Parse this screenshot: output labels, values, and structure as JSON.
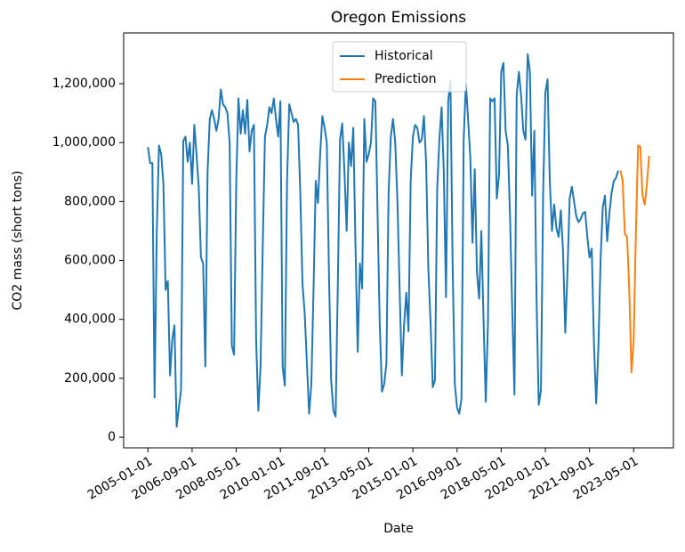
{
  "chart_data": {
    "type": "line",
    "title": "Oregon Emissions",
    "x_label": "Date",
    "y_label": "CO2 mass (short tons)",
    "legend": "upper center",
    "grid": false,
    "xlim": [
      "2004-02-01",
      "2024-11-01"
    ],
    "xticks": [
      "2005-01-01",
      "2006-09-01",
      "2008-05-01",
      "2010-01-01",
      "2011-09-01",
      "2013-05-01",
      "2015-01-01",
      "2016-09-01",
      "2018-05-01",
      "2020-01-01",
      "2021-09-01",
      "2023-05-01"
    ],
    "ylim": [
      -36000,
      1372000
    ],
    "yticks": [
      0,
      {
        "value": 200000,
        "label": "200,000"
      },
      {
        "value": 400000,
        "label": "400,000"
      },
      {
        "value": 600000,
        "label": "600,000"
      },
      {
        "value": 800000,
        "label": "800,000"
      },
      {
        "value": 1000000,
        "label": "1,000,000"
      },
      {
        "value": 1200000,
        "label": "1,200,000"
      }
    ],
    "series": [
      {
        "name": "Historical",
        "color": "#1f77b4",
        "x": [
          "2005-01-01",
          "2005-02-01",
          "2005-03-01",
          "2005-04-01",
          "2005-05-01",
          "2005-06-01",
          "2005-07-01",
          "2005-08-01",
          "2005-09-01",
          "2005-10-01",
          "2005-11-01",
          "2005-12-01",
          "2006-01-01",
          "2006-02-01",
          "2006-03-01",
          "2006-04-01",
          "2006-05-01",
          "2006-06-01",
          "2006-07-01",
          "2006-08-01",
          "2006-09-01",
          "2006-10-01",
          "2006-11-01",
          "2006-12-01",
          "2007-01-01",
          "2007-02-01",
          "2007-03-01",
          "2007-04-01",
          "2007-05-01",
          "2007-06-01",
          "2007-07-01",
          "2007-08-01",
          "2007-09-01",
          "2007-10-01",
          "2007-11-01",
          "2007-12-01",
          "2008-01-01",
          "2008-02-01",
          "2008-03-01",
          "2008-04-01",
          "2008-05-01",
          "2008-06-01",
          "2008-07-01",
          "2008-08-01",
          "2008-09-01",
          "2008-10-01",
          "2008-11-01",
          "2008-12-01",
          "2009-01-01",
          "2009-02-01",
          "2009-03-01",
          "2009-04-01",
          "2009-05-01",
          "2009-06-01",
          "2009-07-01",
          "2009-08-01",
          "2009-09-01",
          "2009-10-01",
          "2009-11-01",
          "2009-12-01",
          "2010-01-01",
          "2010-02-01",
          "2010-03-01",
          "2010-04-01",
          "2010-05-01",
          "2010-06-01",
          "2010-07-01",
          "2010-08-01",
          "2010-09-01",
          "2010-10-01",
          "2010-11-01",
          "2010-12-01",
          "2011-01-01",
          "2011-02-01",
          "2011-03-01",
          "2011-04-01",
          "2011-05-01",
          "2011-06-01",
          "2011-07-01",
          "2011-08-01",
          "2011-09-01",
          "2011-10-01",
          "2011-11-01",
          "2011-12-01",
          "2012-01-01",
          "2012-02-01",
          "2012-03-01",
          "2012-04-01",
          "2012-05-01",
          "2012-06-01",
          "2012-07-01",
          "2012-08-01",
          "2012-09-01",
          "2012-10-01",
          "2012-11-01",
          "2012-12-01",
          "2013-01-01",
          "2013-02-01",
          "2013-03-01",
          "2013-04-01",
          "2013-05-01",
          "2013-06-01",
          "2013-07-01",
          "2013-08-01",
          "2013-09-01",
          "2013-10-01",
          "2013-11-01",
          "2013-12-01",
          "2014-01-01",
          "2014-02-01",
          "2014-03-01",
          "2014-04-01",
          "2014-05-01",
          "2014-06-01",
          "2014-07-01",
          "2014-08-01",
          "2014-09-01",
          "2014-10-01",
          "2014-11-01",
          "2014-12-01",
          "2015-01-01",
          "2015-02-01",
          "2015-03-01",
          "2015-04-01",
          "2015-05-01",
          "2015-06-01",
          "2015-07-01",
          "2015-08-01",
          "2015-09-01",
          "2015-10-01",
          "2015-11-01",
          "2015-12-01",
          "2016-01-01",
          "2016-02-01",
          "2016-03-01",
          "2016-04-01",
          "2016-05-01",
          "2016-06-01",
          "2016-07-01",
          "2016-08-01",
          "2016-09-01",
          "2016-10-01",
          "2016-11-01",
          "2016-12-01",
          "2017-01-01",
          "2017-02-01",
          "2017-03-01",
          "2017-04-01",
          "2017-05-01",
          "2017-06-01",
          "2017-07-01",
          "2017-08-01",
          "2017-09-01",
          "2017-10-01",
          "2017-11-01",
          "2017-12-01",
          "2018-01-01",
          "2018-02-01",
          "2018-03-01",
          "2018-04-01",
          "2018-05-01",
          "2018-06-01",
          "2018-07-01",
          "2018-08-01",
          "2018-09-01",
          "2018-10-01",
          "2018-11-01",
          "2018-12-01",
          "2019-01-01",
          "2019-02-01",
          "2019-03-01",
          "2019-04-01",
          "2019-05-01",
          "2019-06-01",
          "2019-07-01",
          "2019-08-01",
          "2019-09-01",
          "2019-10-01",
          "2019-11-01",
          "2019-12-01",
          "2020-01-01",
          "2020-02-01",
          "2020-03-01",
          "2020-04-01",
          "2020-05-01",
          "2020-06-01",
          "2020-07-01",
          "2020-08-01",
          "2020-09-01",
          "2020-10-01",
          "2020-11-01",
          "2020-12-01",
          "2021-01-01",
          "2021-02-01",
          "2021-03-01",
          "2021-04-01",
          "2021-05-01",
          "2021-06-01",
          "2021-07-01",
          "2021-08-01",
          "2021-09-01",
          "2021-10-01",
          "2021-11-01",
          "2021-12-01",
          "2022-01-01",
          "2022-02-01",
          "2022-03-01",
          "2022-04-01",
          "2022-05-01",
          "2022-06-01",
          "2022-07-01",
          "2022-08-01",
          "2022-09-01",
          "2022-10-01"
        ],
        "values": [
          985000,
          930000,
          930000,
          135000,
          700000,
          990000,
          960000,
          860000,
          500000,
          530000,
          210000,
          330000,
          380000,
          35000,
          100000,
          160000,
          1005000,
          1020000,
          935000,
          1000000,
          860000,
          1060000,
          960000,
          850000,
          610000,
          590000,
          240000,
          900000,
          1080000,
          1110000,
          1080000,
          1040000,
          1080000,
          1180000,
          1130000,
          1120000,
          1100000,
          1000000,
          310000,
          280000,
          870000,
          1150000,
          1030000,
          1110000,
          1030000,
          1145000,
          970000,
          1040000,
          1060000,
          330000,
          90000,
          240000,
          650000,
          1020000,
          1060000,
          1120000,
          1100000,
          1150000,
          1080000,
          1020000,
          1140000,
          240000,
          175000,
          870000,
          1130000,
          1100000,
          1070000,
          1080000,
          1060000,
          830000,
          520000,
          420000,
          250000,
          80000,
          180000,
          500000,
          870000,
          795000,
          960000,
          1090000,
          1050000,
          1000000,
          550000,
          190000,
          90000,
          70000,
          520000,
          1010000,
          1065000,
          900000,
          700000,
          1000000,
          920000,
          1050000,
          650000,
          290000,
          590000,
          505000,
          1080000,
          935000,
          960000,
          1000000,
          1150000,
          1140000,
          760000,
          380000,
          155000,
          180000,
          250000,
          830000,
          1020000,
          1080000,
          1000000,
          800000,
          500000,
          210000,
          380000,
          490000,
          360000,
          870000,
          1020000,
          1060000,
          1050000,
          1000000,
          1010000,
          1090000,
          930000,
          570000,
          390000,
          170000,
          195000,
          840000,
          1010000,
          1120000,
          900000,
          475000,
          1140000,
          1210000,
          580000,
          180000,
          100000,
          80000,
          130000,
          1010000,
          1200000,
          1080000,
          950000,
          660000,
          910000,
          560000,
          470000,
          700000,
          400000,
          120000,
          390000,
          1150000,
          1140000,
          1150000,
          810000,
          890000,
          1240000,
          1270000,
          1040000,
          990000,
          750000,
          430000,
          145000,
          1160000,
          1240000,
          1160000,
          1040000,
          1010000,
          1300000,
          1240000,
          820000,
          1040000,
          470000,
          110000,
          160000,
          830000,
          1170000,
          1215000,
          870000,
          700000,
          790000,
          710000,
          680000,
          770000,
          630000,
          355000,
          560000,
          810000,
          850000,
          800000,
          750000,
          730000,
          740000,
          760000,
          765000,
          680000,
          610000,
          640000,
          320000,
          115000,
          300000,
          600000,
          780000,
          820000,
          665000,
          760000,
          830000,
          870000,
          880000,
          905000
        ]
      },
      {
        "name": "Prediction",
        "color": "#ff7f0e",
        "x": [
          "2022-11-01",
          "2022-12-01",
          "2023-01-01",
          "2023-02-01",
          "2023-03-01",
          "2023-04-01",
          "2023-05-01",
          "2023-06-01",
          "2023-07-01",
          "2023-08-01",
          "2023-09-01",
          "2023-10-01",
          "2023-11-01",
          "2023-12-01"
        ],
        "values": [
          905000,
          870000,
          690000,
          680000,
          500000,
          220000,
          330000,
          700000,
          990000,
          985000,
          820000,
          790000,
          860000,
          955000
        ]
      }
    ]
  }
}
